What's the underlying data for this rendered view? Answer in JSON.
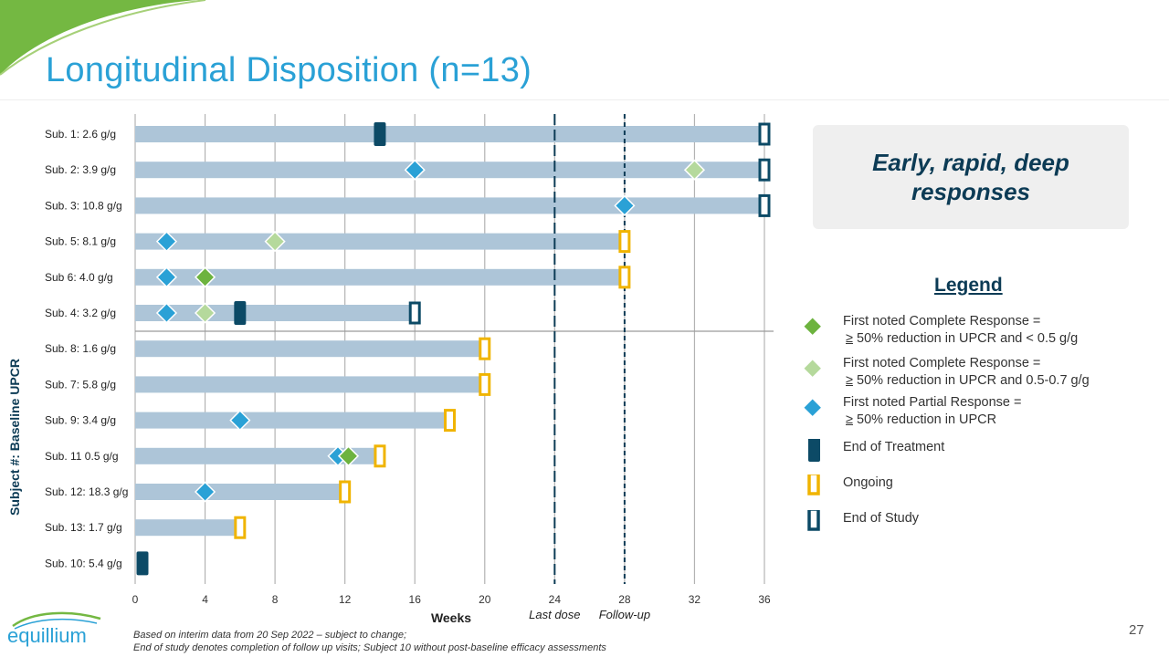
{
  "slide": {
    "title": "Longitudinal Disposition (n=13)",
    "page_number": "27",
    "brand": "equillium",
    "callout": "Early, rapid, deep responses",
    "footnote_line1": "Based on interim data from 20 Sep 2022 – subject to change;",
    "footnote_line2": "End of study denotes completion of follow up visits; Subject 10 without post-baseline efficacy assessments"
  },
  "legend": {
    "title": "Legend",
    "items": [
      {
        "key": "cr_full",
        "line1": "First noted Complete Response =",
        "sym": "≥",
        "line2": "50% reduction in UPCR and < 0.5 g/g",
        "color": "#6db33f"
      },
      {
        "key": "cr_partial",
        "line1": "First noted Complete Response =",
        "sym": "≥",
        "line2": "50% reduction in UPCR and 0.5-0.7 g/g",
        "color": "#b5d99c"
      },
      {
        "key": "pr",
        "line1": "First noted Partial Response =",
        "sym": "≥",
        "line2": "50% reduction in UPCR",
        "color": "#2aa1d6"
      },
      {
        "key": "eot",
        "line1": "End of Treatment",
        "color": "#0c4a66"
      },
      {
        "key": "ongoing",
        "line1": "Ongoing",
        "color": "#f0b400"
      },
      {
        "key": "eos",
        "line1": "End of Study",
        "color": "#0c4a66"
      }
    ]
  },
  "chart_data": {
    "type": "swimmer",
    "xlabel": "Weeks",
    "ylabel": "Subject #: Baseline UPCR",
    "xlim": [
      0,
      36
    ],
    "xticks": [
      0,
      4,
      8,
      12,
      16,
      20,
      24,
      28,
      32,
      36
    ],
    "reference_lines": [
      {
        "x": 24,
        "label": "Last dose"
      },
      {
        "x": 28,
        "label": "Follow-up"
      }
    ],
    "subjects": [
      {
        "label": "Sub. 1: 2.6 g/g",
        "end": 36,
        "status": "eos",
        "markers": [
          {
            "type": "eot",
            "x": 14
          }
        ]
      },
      {
        "label": "Sub. 2: 3.9 g/g",
        "end": 36,
        "status": "eos",
        "markers": [
          {
            "type": "pr",
            "x": 16
          },
          {
            "type": "cr_partial",
            "x": 32
          }
        ]
      },
      {
        "label": "Sub. 3: 10.8 g/g",
        "end": 36,
        "status": "eos",
        "markers": [
          {
            "type": "pr",
            "x": 28
          }
        ]
      },
      {
        "label": "Sub. 5: 8.1 g/g",
        "end": 28,
        "status": "ongoing",
        "markers": [
          {
            "type": "pr",
            "x": 1.8
          },
          {
            "type": "cr_partial",
            "x": 8
          }
        ]
      },
      {
        "label": "Sub 6: 4.0 g/g",
        "end": 28,
        "status": "ongoing",
        "markers": [
          {
            "type": "pr",
            "x": 1.8
          },
          {
            "type": "cr_full",
            "x": 4
          }
        ]
      },
      {
        "label": "Sub. 4: 3.2 g/g",
        "end": 16,
        "status": "eos",
        "markers": [
          {
            "type": "pr",
            "x": 1.8
          },
          {
            "type": "cr_partial",
            "x": 4
          },
          {
            "type": "eot",
            "x": 6
          }
        ]
      },
      {
        "label": "Sub. 8: 1.6 g/g",
        "end": 20,
        "status": "ongoing",
        "markers": []
      },
      {
        "label": "Sub. 7: 5.8 g/g",
        "end": 20,
        "status": "ongoing",
        "markers": []
      },
      {
        "label": "Sub. 9: 3.4 g/g",
        "end": 18,
        "status": "ongoing",
        "markers": [
          {
            "type": "pr",
            "x": 6
          }
        ]
      },
      {
        "label": "Sub. 11 0.5 g/g",
        "end": 14,
        "status": "ongoing",
        "markers": [
          {
            "type": "pr",
            "x": 11.6
          },
          {
            "type": "cr_full",
            "x": 12.2
          }
        ]
      },
      {
        "label": "Sub. 12: 18.3 g/g",
        "end": 12,
        "status": "ongoing",
        "markers": [
          {
            "type": "pr",
            "x": 4
          }
        ]
      },
      {
        "label": "Sub. 13: 1.7 g/g",
        "end": 6,
        "status": "ongoing",
        "markers": []
      },
      {
        "label": "Sub. 10: 5.4 g/g",
        "end": 0,
        "status": "eot",
        "markers": []
      }
    ]
  }
}
